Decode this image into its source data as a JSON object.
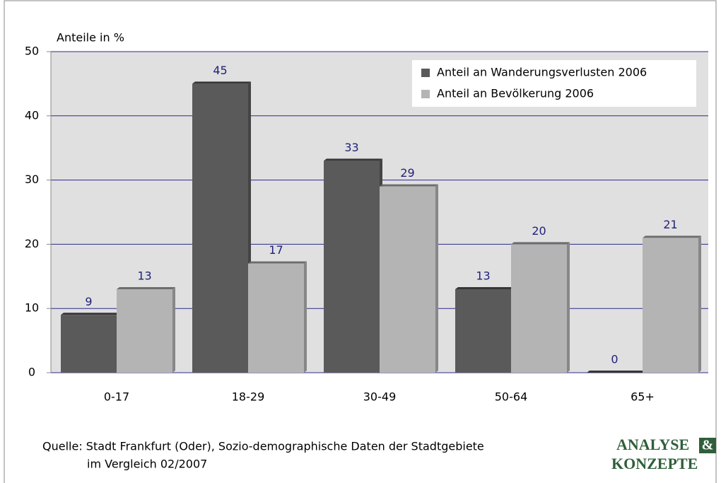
{
  "chart_data": {
    "type": "bar",
    "y_label": "Anteile in %",
    "categories": [
      "0-17",
      "18-29",
      "30-49",
      "50-64",
      "65+"
    ],
    "series": [
      {
        "name": "Anteil an Wanderungsverlusten 2006",
        "color": "#5a5a5a",
        "values": [
          9,
          45,
          33,
          13,
          0
        ]
      },
      {
        "name": "Anteil an Bevölkerung 2006",
        "color": "#b4b4b4",
        "values": [
          13,
          17,
          29,
          20,
          21
        ]
      }
    ],
    "ylim": [
      0,
      50
    ],
    "yticks": [
      0,
      10,
      20,
      30,
      40,
      50
    ],
    "grid": true,
    "legend": "upper right",
    "source": [
      "Quelle: Stadt Frankfurt (Oder), Sozio-demographische Daten der Stadtgebiete",
      "im Vergleich 02/2007"
    ],
    "logo": [
      "ANALYSE",
      "&",
      "KONZEPTE"
    ]
  }
}
